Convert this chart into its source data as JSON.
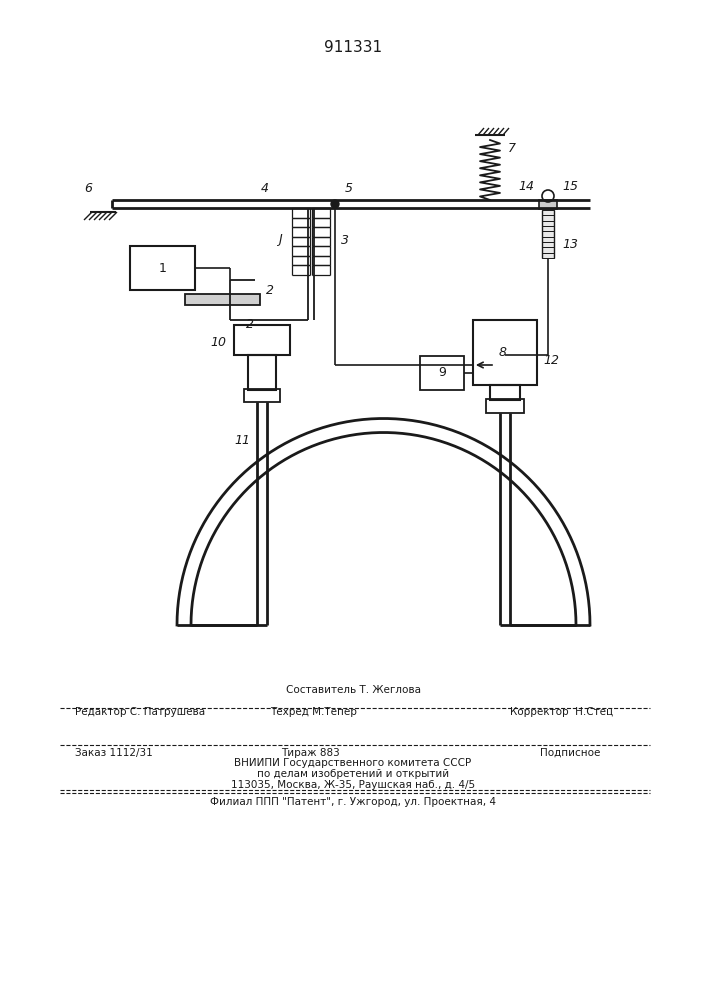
{
  "patent_number": "911331",
  "bg_color": "#ffffff",
  "line_color": "#1a1a1a",
  "fig_width": 7.07,
  "fig_height": 10.0,
  "footer": {
    "sostavitel": "Составитель Т. Жеглова",
    "redaktor": "Редактор С. Патрушева",
    "tehred": "Техред М.Тепер",
    "korrektor": "Корректор  Н.Стец",
    "zakaz": "Заказ 1112/31",
    "tirazh": "Тираж 883",
    "podpisnoe": "Подписное",
    "vniipи": "ВНИИПИ Государственного комитета СССР",
    "podelam": "по делам изобретений и открытий",
    "address": "113035, Москва, Ж-35, Раушская наб., д. 4/5",
    "filial": "Филиал ППП \"Патент\", г. Ужгород, ул. Проектная, 4"
  }
}
